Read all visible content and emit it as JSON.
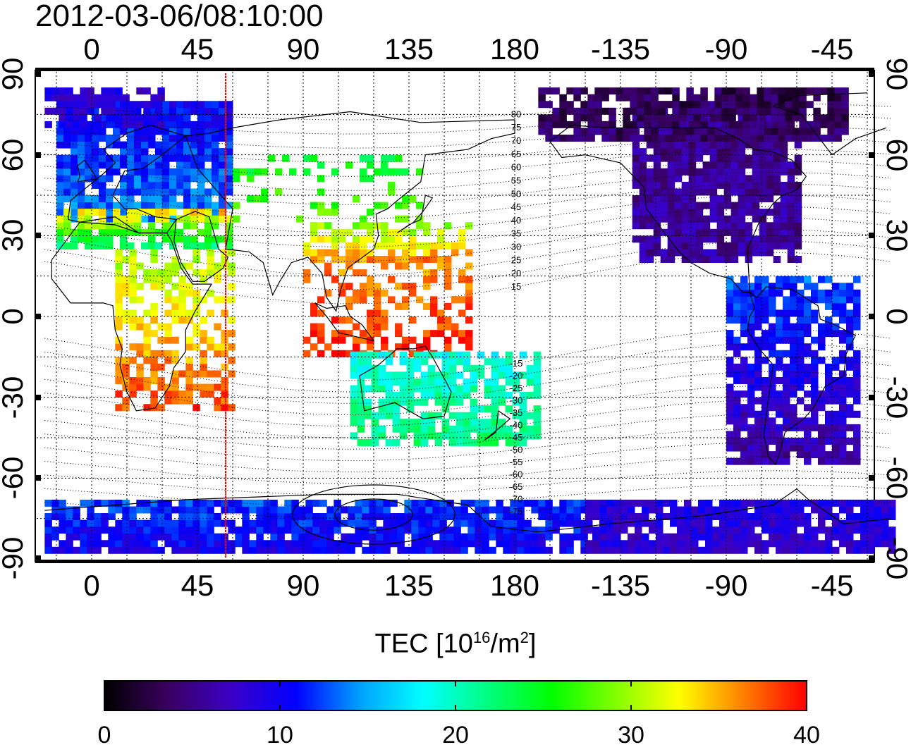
{
  "title": "2012-03-06/08:10:00",
  "map": {
    "lon_ticks_top": [
      "0",
      "45",
      "90",
      "135",
      "180",
      "-135",
      "-90",
      "-45"
    ],
    "lon_ticks_bottom": [
      "0",
      "45",
      "90",
      "135",
      "180",
      "-135",
      "-90",
      "-45"
    ],
    "lat_ticks_left": [
      "90",
      "60",
      "30",
      "0",
      "-30",
      "-60",
      "-90"
    ],
    "lat_ticks_right": [
      "90",
      "60",
      "30",
      "0",
      "-30",
      "-60",
      "-90"
    ],
    "magnetic_latitude_labels": [
      "80",
      "75",
      "70",
      "65",
      "60",
      "55",
      "50",
      "45",
      "40",
      "35",
      "30",
      "25",
      "20",
      "15",
      "-15",
      "-20",
      "-25",
      "-30",
      "-35",
      "-40",
      "-45",
      "-50",
      "-55",
      "-60",
      "-65",
      "-70",
      "-75"
    ],
    "terminator_color": "#ff0000"
  },
  "colorbar": {
    "title_main": "TEC  [10",
    "title_exp": "16",
    "title_unit": "/m",
    "title_exp2": "2",
    "title_end": "]",
    "ticks": [
      "0",
      "10",
      "20",
      "30",
      "40"
    ],
    "colors": [
      "#000000",
      "#3a0060",
      "#3b00c8",
      "#0000ff",
      "#00a0ff",
      "#00ffff",
      "#00ff80",
      "#00ff00",
      "#80ff00",
      "#ffff00",
      "#ff8000",
      "#ff0000"
    ]
  }
}
